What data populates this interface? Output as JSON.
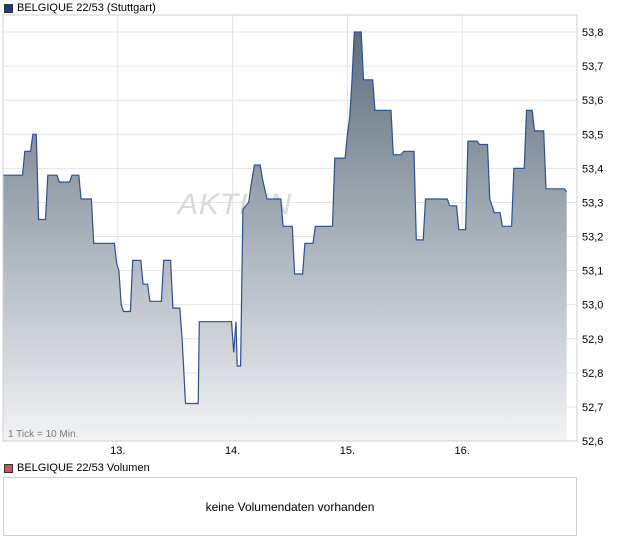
{
  "price_legend": {
    "label": "BELGIQUE 22/53 (Stuttgart)",
    "color": "#1f3b8c"
  },
  "volume_legend": {
    "label": "BELGIQUE 22/53 Volumen",
    "color": "#c25a5a"
  },
  "volume_panel": {
    "message": "keine Volumendaten vorhanden"
  },
  "tick_note": "1 Tick = 10 Min.",
  "watermark": "AKTIEN",
  "chart_data": {
    "type": "area",
    "title": "",
    "xlabel": "",
    "ylabel": "",
    "ylim": [
      52.6,
      53.85
    ],
    "yticks": [
      "53,8",
      "53,7",
      "53,6",
      "53,5",
      "53,4",
      "53,3",
      "53,2",
      "53,1",
      "53,0",
      "52,9",
      "52,8",
      "52,7",
      "52,6"
    ],
    "yvalues": [
      53.8,
      53.7,
      53.6,
      53.5,
      53.4,
      53.3,
      53.2,
      53.1,
      53.0,
      52.9,
      52.8,
      52.7,
      52.6
    ],
    "xlim": [
      12.0,
      17.0
    ],
    "xticks": [
      {
        "label": "13.",
        "x": 13.0
      },
      {
        "label": "14.",
        "x": 14.0
      },
      {
        "label": "15.",
        "x": 15.0
      },
      {
        "label": "16.",
        "x": 16.0
      }
    ],
    "grid": true,
    "line_color": "#2f4f96",
    "fill_top": "#5e6f7e",
    "fill_bottom": "#f2f3f5",
    "series": [
      {
        "values": [
          [
            12.0,
            53.38
          ],
          [
            12.17,
            53.38
          ],
          [
            12.19,
            53.45
          ],
          [
            12.24,
            53.45
          ],
          [
            12.26,
            53.5
          ],
          [
            12.29,
            53.5
          ],
          [
            12.31,
            53.25
          ],
          [
            12.37,
            53.25
          ],
          [
            12.39,
            53.38
          ],
          [
            12.47,
            53.38
          ],
          [
            12.49,
            53.36
          ],
          [
            12.58,
            53.36
          ],
          [
            12.6,
            53.38
          ],
          [
            12.66,
            53.38
          ],
          [
            12.68,
            53.31
          ],
          [
            12.77,
            53.31
          ],
          [
            12.79,
            53.18
          ],
          [
            12.97,
            53.18
          ],
          [
            12.99,
            53.12
          ],
          [
            13.01,
            53.1
          ],
          [
            13.03,
            53.0
          ],
          [
            13.05,
            52.98
          ],
          [
            13.11,
            52.98
          ],
          [
            13.13,
            53.13
          ],
          [
            13.2,
            53.13
          ],
          [
            13.22,
            53.06
          ],
          [
            13.26,
            53.06
          ],
          [
            13.28,
            53.01
          ],
          [
            13.38,
            53.01
          ],
          [
            13.4,
            53.13
          ],
          [
            13.46,
            53.13
          ],
          [
            13.48,
            52.99
          ],
          [
            13.54,
            52.99
          ],
          [
            13.56,
            52.9
          ],
          [
            13.59,
            52.71
          ],
          [
            13.7,
            52.71
          ],
          [
            13.71,
            52.95
          ],
          [
            13.99,
            52.95
          ],
          [
            14.01,
            52.86
          ],
          [
            14.03,
            52.95
          ],
          [
            14.04,
            52.82
          ],
          [
            14.07,
            52.82
          ],
          [
            14.09,
            53.28
          ],
          [
            14.14,
            53.3
          ],
          [
            14.16,
            53.35
          ],
          [
            14.19,
            53.41
          ],
          [
            14.24,
            53.41
          ],
          [
            14.26,
            53.37
          ],
          [
            14.3,
            53.31
          ],
          [
            14.42,
            53.31
          ],
          [
            14.44,
            53.23
          ],
          [
            14.52,
            53.23
          ],
          [
            14.54,
            53.09
          ],
          [
            14.61,
            53.09
          ],
          [
            14.63,
            53.18
          ],
          [
            14.7,
            53.18
          ],
          [
            14.72,
            53.23
          ],
          [
            14.87,
            53.23
          ],
          [
            14.89,
            53.43
          ],
          [
            14.98,
            53.43
          ],
          [
            15.0,
            53.5
          ],
          [
            15.02,
            53.55
          ],
          [
            15.04,
            53.66
          ],
          [
            15.06,
            53.8
          ],
          [
            15.12,
            53.8
          ],
          [
            15.14,
            53.66
          ],
          [
            15.22,
            53.66
          ],
          [
            15.24,
            53.57
          ],
          [
            15.38,
            53.57
          ],
          [
            15.4,
            53.44
          ],
          [
            15.47,
            53.44
          ],
          [
            15.49,
            53.45
          ],
          [
            15.58,
            53.45
          ],
          [
            15.6,
            53.19
          ],
          [
            15.66,
            53.19
          ],
          [
            15.68,
            53.31
          ],
          [
            15.87,
            53.31
          ],
          [
            15.89,
            53.29
          ],
          [
            15.95,
            53.29
          ],
          [
            15.97,
            53.22
          ],
          [
            16.03,
            53.22
          ],
          [
            16.05,
            53.48
          ],
          [
            16.13,
            53.48
          ],
          [
            16.15,
            53.47
          ],
          [
            16.22,
            53.47
          ],
          [
            16.24,
            53.31
          ],
          [
            16.28,
            53.27
          ],
          [
            16.33,
            53.27
          ],
          [
            16.35,
            53.23
          ],
          [
            16.43,
            53.23
          ],
          [
            16.45,
            53.4
          ],
          [
            16.54,
            53.4
          ],
          [
            16.56,
            53.57
          ],
          [
            16.61,
            53.57
          ],
          [
            16.63,
            53.51
          ],
          [
            16.71,
            53.51
          ],
          [
            16.73,
            53.34
          ],
          [
            16.89,
            53.34
          ],
          [
            16.91,
            53.33
          ]
        ]
      }
    ]
  }
}
